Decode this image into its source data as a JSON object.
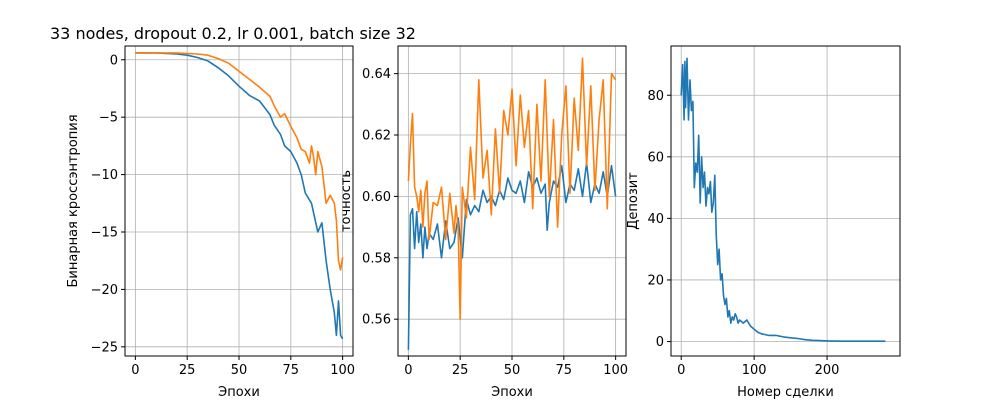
{
  "figure": {
    "title": "33 nodes, dropout 0.2, lr 0.001, batch size 32",
    "colors": {
      "series1": "#1f77b4",
      "series2": "#ff7f0e"
    }
  },
  "chart_data": [
    {
      "type": "line",
      "xlabel": "Эпохи",
      "ylabel": "Бинарная кроссэнтропия",
      "xlim": [
        -5,
        105
      ],
      "ylim": [
        -25.8,
        1.2
      ],
      "xticks": [
        0,
        25,
        50,
        75,
        100
      ],
      "yticks": [
        0,
        -5,
        -10,
        -15,
        -20,
        -25
      ],
      "grid": true,
      "series": [
        {
          "x": [
            0,
            5,
            10,
            15,
            20,
            25,
            30,
            35,
            40,
            45,
            50,
            55,
            60,
            65,
            67,
            70,
            72,
            75,
            78,
            80,
            82,
            85,
            88,
            90,
            92,
            94,
            96,
            97,
            98,
            99,
            100
          ],
          "y": [
            0.6,
            0.6,
            0.6,
            0.55,
            0.5,
            0.4,
            0.2,
            -0.1,
            -0.7,
            -1.4,
            -2.3,
            -3.1,
            -3.6,
            -4.8,
            -5.7,
            -6.5,
            -7.5,
            -8,
            -9,
            -10,
            -11.6,
            -12.5,
            -15,
            -14.2,
            -17.5,
            -20,
            -22,
            -24,
            -21,
            -24,
            -24.3
          ]
        },
        {
          "x": [
            0,
            5,
            10,
            15,
            20,
            25,
            30,
            35,
            40,
            45,
            50,
            55,
            60,
            65,
            67,
            70,
            72,
            75,
            78,
            80,
            82,
            84,
            85,
            86,
            87,
            88,
            90,
            92,
            94,
            96,
            97,
            98,
            99,
            100
          ],
          "y": [
            0.6,
            0.6,
            0.6,
            0.6,
            0.6,
            0.55,
            0.5,
            0.4,
            0.1,
            -0.3,
            -1,
            -1.7,
            -2.4,
            -3.2,
            -4,
            -5,
            -4.7,
            -5.8,
            -6.8,
            -7.8,
            -8,
            -9,
            -7.5,
            -8.5,
            -10,
            -8,
            -9.3,
            -12.5,
            -11.8,
            -12.5,
            -14,
            -17.5,
            -18.3,
            -17.2
          ]
        }
      ]
    },
    {
      "type": "line",
      "xlabel": "Эпохи",
      "ylabel": "точность",
      "xlim": [
        -5,
        105
      ],
      "ylim": [
        0.548,
        0.649
      ],
      "xticks": [
        0,
        25,
        50,
        75,
        100
      ],
      "yticks": [
        0.56,
        0.58,
        0.6,
        0.62,
        0.64
      ],
      "grid": true,
      "series": [
        {
          "x": [
            0,
            1,
            2,
            3,
            4,
            5,
            6,
            7,
            8,
            9,
            10,
            12,
            14,
            16,
            18,
            20,
            22,
            24,
            26,
            28,
            30,
            32,
            34,
            36,
            38,
            40,
            42,
            44,
            46,
            48,
            50,
            52,
            54,
            56,
            58,
            60,
            62,
            64,
            66,
            67,
            68,
            70,
            72,
            74,
            76,
            78,
            80,
            82,
            84,
            86,
            88,
            90,
            92,
            94,
            96,
            98,
            100
          ],
          "y": [
            0.55,
            0.594,
            0.596,
            0.583,
            0.595,
            0.585,
            0.591,
            0.58,
            0.59,
            0.583,
            0.588,
            0.586,
            0.591,
            0.58,
            0.592,
            0.583,
            0.585,
            0.593,
            0.58,
            0.599,
            0.594,
            0.597,
            0.595,
            0.602,
            0.598,
            0.6,
            0.597,
            0.602,
            0.599,
            0.606,
            0.602,
            0.601,
            0.605,
            0.598,
            0.608,
            0.603,
            0.606,
            0.601,
            0.604,
            0.589,
            0.598,
            0.605,
            0.603,
            0.61,
            0.598,
            0.604,
            0.602,
            0.609,
            0.6,
            0.611,
            0.598,
            0.604,
            0.601,
            0.608,
            0.6,
            0.61,
            0.6
          ]
        },
        {
          "x": [
            0,
            1,
            2,
            3,
            4,
            5,
            6,
            7,
            8,
            9,
            10,
            12,
            14,
            16,
            18,
            20,
            22,
            23,
            24,
            25,
            26,
            28,
            30,
            32,
            34,
            36,
            38,
            40,
            42,
            44,
            46,
            48,
            50,
            52,
            54,
            56,
            58,
            60,
            62,
            64,
            66,
            68,
            70,
            72,
            74,
            76,
            78,
            80,
            82,
            84,
            86,
            88,
            90,
            92,
            94,
            96,
            98,
            100
          ],
          "y": [
            0.605,
            0.617,
            0.627,
            0.603,
            0.6,
            0.595,
            0.602,
            0.59,
            0.601,
            0.605,
            0.586,
            0.598,
            0.597,
            0.603,
            0.586,
            0.601,
            0.588,
            0.597,
            0.59,
            0.56,
            0.603,
            0.593,
            0.616,
            0.599,
            0.638,
            0.606,
            0.615,
            0.594,
            0.622,
            0.601,
            0.628,
            0.62,
            0.635,
            0.61,
            0.633,
            0.616,
            0.628,
            0.596,
            0.63,
            0.605,
            0.638,
            0.6,
            0.625,
            0.59,
            0.62,
            0.636,
            0.601,
            0.632,
            0.615,
            0.645,
            0.61,
            0.636,
            0.602,
            0.625,
            0.638,
            0.596,
            0.64,
            0.638
          ]
        }
      ]
    },
    {
      "type": "line",
      "xlabel": "Номер сделки",
      "ylabel": "Депозит",
      "xlim": [
        -14,
        300
      ],
      "ylim": [
        -4.7,
        96
      ],
      "xticks": [
        0,
        100,
        200
      ],
      "yticks": [
        0,
        20,
        40,
        60,
        80
      ],
      "grid": true,
      "series": [
        {
          "x": [
            0,
            2,
            4,
            5,
            6,
            8,
            10,
            12,
            14,
            16,
            18,
            20,
            22,
            24,
            26,
            28,
            30,
            32,
            34,
            36,
            38,
            40,
            42,
            44,
            46,
            48,
            50,
            52,
            54,
            56,
            58,
            60,
            62,
            64,
            66,
            68,
            70,
            72,
            74,
            76,
            78,
            80,
            85,
            90,
            95,
            100,
            105,
            110,
            120,
            130,
            140,
            150,
            160,
            170,
            180,
            190,
            200,
            220,
            240,
            260,
            280
          ],
          "y": [
            80,
            90,
            72,
            91,
            76,
            92,
            72,
            85,
            75,
            78,
            50,
            58,
            55,
            67,
            45,
            60,
            50,
            55,
            44,
            50,
            48,
            52,
            42,
            45,
            54,
            35,
            25,
            30,
            20,
            22,
            15,
            12,
            14,
            8,
            10,
            6,
            8,
            7,
            9,
            8,
            6,
            7,
            6,
            7,
            5,
            4,
            3,
            2.5,
            2,
            2,
            1.5,
            1.2,
            1,
            0.6,
            0.4,
            0.3,
            0.2,
            0.1,
            0.1,
            0.1,
            0.1
          ]
        }
      ]
    }
  ]
}
